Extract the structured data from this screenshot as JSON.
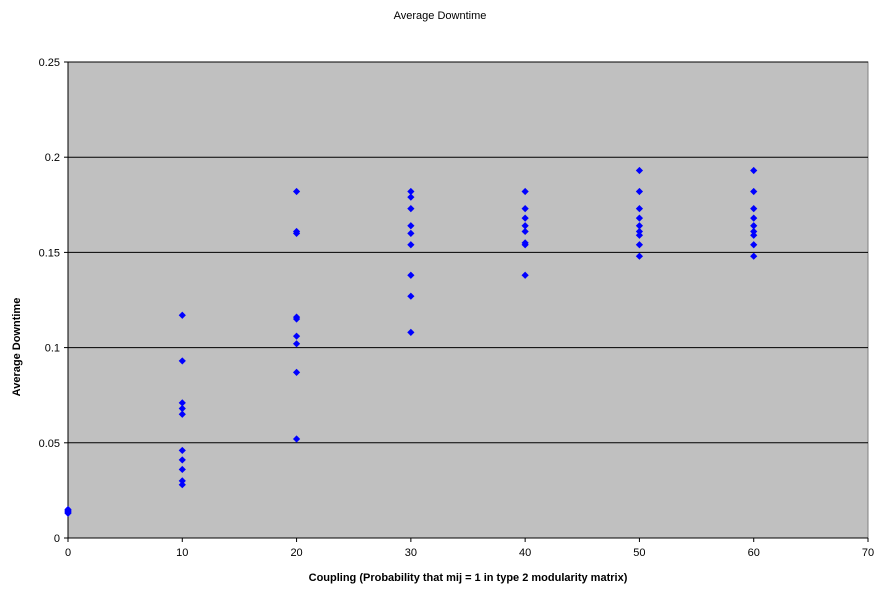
{
  "chart_data": {
    "type": "scatter",
    "title": "Average Downtime",
    "xlabel": "Coupling (Probability that mij = 1 in type 2 modularity matrix)",
    "ylabel": "Average Downtime",
    "xlim": [
      0,
      70
    ],
    "ylim": [
      0,
      0.25
    ],
    "x_ticks": [
      "0",
      "10",
      "20",
      "30",
      "40",
      "50",
      "60",
      "70"
    ],
    "y_ticks": [
      "0",
      "0.05",
      "0.1",
      "0.15",
      "0.2",
      "0.25"
    ],
    "grid": "horizontal",
    "plot_background": "#c0c0c0",
    "marker": "diamond",
    "marker_color": "#0000ff",
    "series": [
      {
        "points": [
          [
            0,
            0.013
          ],
          [
            0,
            0.0135
          ],
          [
            0,
            0.014
          ],
          [
            0,
            0.0145
          ],
          [
            0,
            0.015
          ],
          [
            10,
            0.117
          ],
          [
            10,
            0.093
          ],
          [
            10,
            0.071
          ],
          [
            10,
            0.068
          ],
          [
            10,
            0.065
          ],
          [
            10,
            0.046
          ],
          [
            10,
            0.041
          ],
          [
            10,
            0.036
          ],
          [
            10,
            0.03
          ],
          [
            10,
            0.028
          ],
          [
            20,
            0.182
          ],
          [
            20,
            0.161
          ],
          [
            20,
            0.16
          ],
          [
            20,
            0.116
          ],
          [
            20,
            0.115
          ],
          [
            20,
            0.106
          ],
          [
            20,
            0.102
          ],
          [
            20,
            0.087
          ],
          [
            20,
            0.052
          ],
          [
            30,
            0.182
          ],
          [
            30,
            0.179
          ],
          [
            30,
            0.173
          ],
          [
            30,
            0.164
          ],
          [
            30,
            0.16
          ],
          [
            30,
            0.154
          ],
          [
            30,
            0.138
          ],
          [
            30,
            0.127
          ],
          [
            30,
            0.108
          ],
          [
            40,
            0.182
          ],
          [
            40,
            0.173
          ],
          [
            40,
            0.168
          ],
          [
            40,
            0.164
          ],
          [
            40,
            0.161
          ],
          [
            40,
            0.155
          ],
          [
            40,
            0.154
          ],
          [
            40,
            0.138
          ],
          [
            50,
            0.193
          ],
          [
            50,
            0.182
          ],
          [
            50,
            0.173
          ],
          [
            50,
            0.168
          ],
          [
            50,
            0.164
          ],
          [
            50,
            0.161
          ],
          [
            50,
            0.159
          ],
          [
            50,
            0.154
          ],
          [
            50,
            0.148
          ],
          [
            60,
            0.193
          ],
          [
            60,
            0.182
          ],
          [
            60,
            0.173
          ],
          [
            60,
            0.168
          ],
          [
            60,
            0.164
          ],
          [
            60,
            0.161
          ],
          [
            60,
            0.159
          ],
          [
            60,
            0.154
          ],
          [
            60,
            0.148
          ]
        ]
      }
    ]
  }
}
